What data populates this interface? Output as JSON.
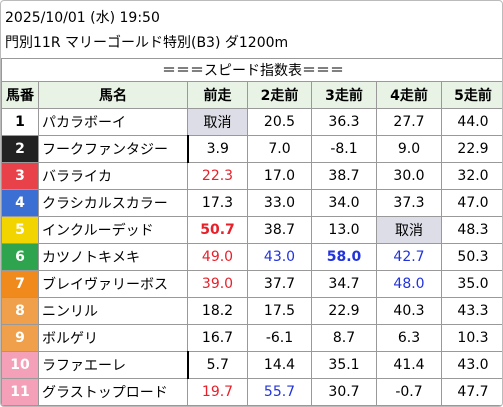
{
  "header": {
    "datetime": "2025/10/01 (水) 19:50",
    "race": "門別11R マリーゴールド特別(B3) ダ1200m"
  },
  "table": {
    "title": "＝＝＝スピード指数表＝＝＝",
    "columns": [
      "馬番",
      "馬名",
      "前走",
      "2走前",
      "3走前",
      "4走前",
      "5走前"
    ],
    "rows": [
      {
        "number": "1",
        "frame_color": "#ffffff",
        "number_color": "#000000",
        "name": "パカラボーイ",
        "cells": [
          {
            "text": "取消",
            "color": "#000000",
            "bg": "#dcdde6"
          },
          {
            "text": "20.5",
            "color": "#000000"
          },
          {
            "text": "36.3",
            "color": "#000000"
          },
          {
            "text": "27.7",
            "color": "#000000"
          },
          {
            "text": "44.0",
            "color": "#000000"
          }
        ]
      },
      {
        "number": "2",
        "frame_color": "#222222",
        "number_color": "#ffffff",
        "name": "フークファンタジー",
        "name_mark": true,
        "cells": [
          {
            "text": "3.9",
            "color": "#000000"
          },
          {
            "text": "7.0",
            "color": "#000000"
          },
          {
            "text": "-8.1",
            "color": "#000000"
          },
          {
            "text": "9.0",
            "color": "#000000"
          },
          {
            "text": "22.9",
            "color": "#000000"
          }
        ]
      },
      {
        "number": "3",
        "frame_color": "#e8414a",
        "number_color": "#ffffff",
        "name": "バラライカ",
        "cells": [
          {
            "text": "22.3",
            "color": "#e8202a"
          },
          {
            "text": "17.0",
            "color": "#000000"
          },
          {
            "text": "38.7",
            "color": "#000000"
          },
          {
            "text": "30.0",
            "color": "#000000"
          },
          {
            "text": "32.0",
            "color": "#000000"
          }
        ]
      },
      {
        "number": "4",
        "frame_color": "#3c6fd3",
        "number_color": "#ffffff",
        "name": "クラシカルスカラー",
        "cells": [
          {
            "text": "17.3",
            "color": "#000000"
          },
          {
            "text": "33.0",
            "color": "#000000"
          },
          {
            "text": "34.0",
            "color": "#000000"
          },
          {
            "text": "37.3",
            "color": "#000000"
          },
          {
            "text": "47.0",
            "color": "#000000"
          }
        ]
      },
      {
        "number": "5",
        "frame_color": "#f2d400",
        "number_color": "#ffffff",
        "name": "インクルーデッド",
        "cells": [
          {
            "text": "50.7",
            "color": "#e8202a",
            "bold": true
          },
          {
            "text": "38.7",
            "color": "#000000"
          },
          {
            "text": "13.0",
            "color": "#000000"
          },
          {
            "text": "取消",
            "color": "#000000",
            "bg": "#dcdde6"
          },
          {
            "text": "48.3",
            "color": "#000000"
          }
        ]
      },
      {
        "number": "6",
        "frame_color": "#2ea44f",
        "number_color": "#ffffff",
        "name": "カツノトキメキ",
        "cells": [
          {
            "text": "49.0",
            "color": "#e8202a"
          },
          {
            "text": "43.0",
            "color": "#2233dd"
          },
          {
            "text": "58.0",
            "color": "#2233dd",
            "bold": true
          },
          {
            "text": "42.7",
            "color": "#2233dd"
          },
          {
            "text": "50.3",
            "color": "#000000"
          }
        ]
      },
      {
        "number": "7",
        "frame_color": "#f08a1c",
        "number_color": "#ffffff",
        "name": "ブレイヴァリーボス",
        "cells": [
          {
            "text": "39.0",
            "color": "#e8202a"
          },
          {
            "text": "37.7",
            "color": "#000000"
          },
          {
            "text": "34.7",
            "color": "#000000"
          },
          {
            "text": "48.0",
            "color": "#2233dd"
          },
          {
            "text": "35.0",
            "color": "#000000"
          }
        ]
      },
      {
        "number": "8",
        "frame_color": "#f0a04a",
        "number_color": "#ffffff",
        "name": "ニンリル",
        "cells": [
          {
            "text": "18.2",
            "color": "#000000"
          },
          {
            "text": "17.5",
            "color": "#000000"
          },
          {
            "text": "22.9",
            "color": "#000000"
          },
          {
            "text": "40.3",
            "color": "#000000"
          },
          {
            "text": "43.3",
            "color": "#000000"
          }
        ]
      },
      {
        "number": "9",
        "frame_color": "#f0a04a",
        "number_color": "#ffffff",
        "name": "ボルゲリ",
        "cells": [
          {
            "text": "16.7",
            "color": "#000000"
          },
          {
            "text": "-6.1",
            "color": "#000000"
          },
          {
            "text": "8.7",
            "color": "#000000"
          },
          {
            "text": "6.3",
            "color": "#000000"
          },
          {
            "text": "10.3",
            "color": "#000000"
          }
        ]
      },
      {
        "number": "10",
        "frame_color": "#f4a0b8",
        "number_color": "#ffffff",
        "name": "ラファエーレ",
        "name_mark": true,
        "cells": [
          {
            "text": "5.7",
            "color": "#000000"
          },
          {
            "text": "14.4",
            "color": "#000000"
          },
          {
            "text": "35.1",
            "color": "#000000"
          },
          {
            "text": "41.4",
            "color": "#000000"
          },
          {
            "text": "43.0",
            "color": "#000000"
          }
        ]
      },
      {
        "number": "11",
        "frame_color": "#f4a0b8",
        "number_color": "#ffffff",
        "name": "グラストップロード",
        "cells": [
          {
            "text": "19.7",
            "color": "#e8202a"
          },
          {
            "text": "55.7",
            "color": "#2233dd"
          },
          {
            "text": "30.7",
            "color": "#000000"
          },
          {
            "text": "-0.7",
            "color": "#000000"
          },
          {
            "text": "47.7",
            "color": "#000000"
          }
        ]
      }
    ]
  }
}
